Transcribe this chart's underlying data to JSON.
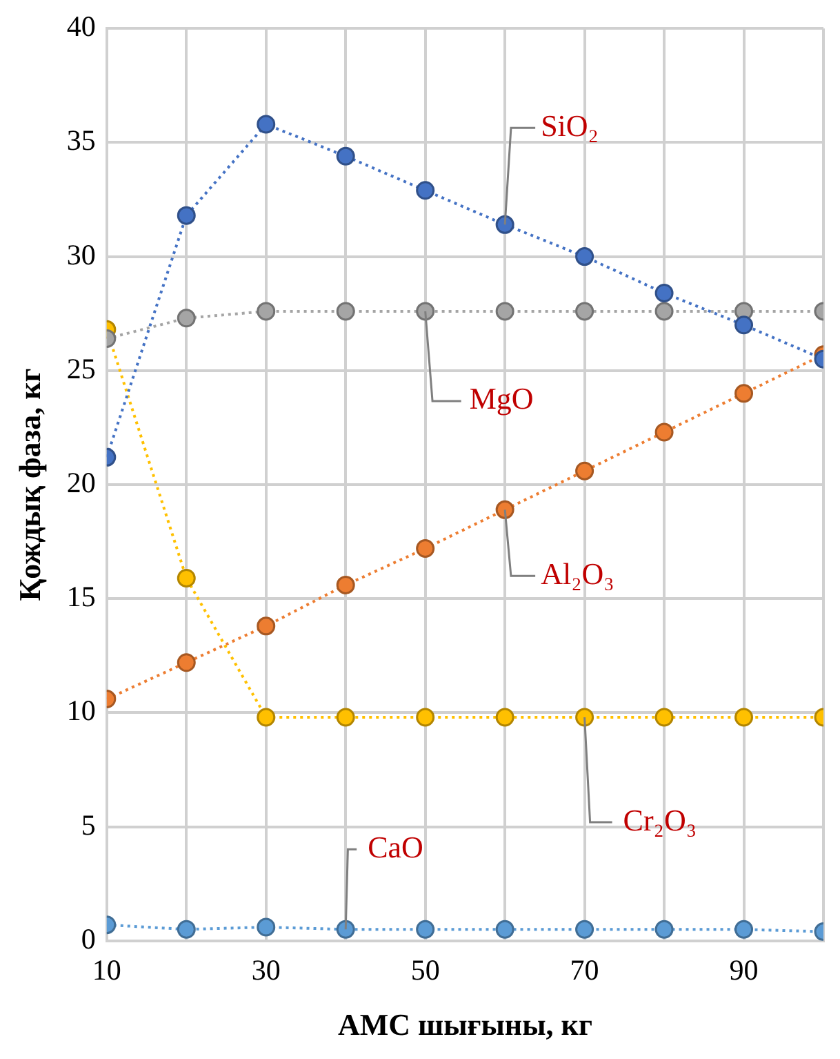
{
  "chart_data": {
    "type": "line",
    "xlabel": "АМС шығыны, кг",
    "ylabel": "Қождық фаза, кг",
    "x": [
      10,
      20,
      30,
      40,
      50,
      60,
      70,
      80,
      90,
      100
    ],
    "xlim": [
      10,
      100
    ],
    "xticks": [
      10,
      {
        "value": 20,
        "label": null
      },
      30,
      {
        "value": 40,
        "label": null
      },
      50,
      {
        "value": 60,
        "label": null
      },
      70,
      {
        "value": 80,
        "label": null
      },
      90,
      {
        "value": 100,
        "label": null
      }
    ],
    "ylim": [
      0,
      40
    ],
    "yticks": [
      0,
      5,
      10,
      15,
      20,
      25,
      30,
      35,
      40
    ],
    "grid": true,
    "marker": "circle",
    "line_style": "dotted",
    "series": [
      {
        "name": "SiO₂",
        "color": "#4472c4",
        "values": [
          21.2,
          31.8,
          35.8,
          34.4,
          32.9,
          31.4,
          30.0,
          28.4,
          27.0,
          25.5
        ]
      },
      {
        "name": "MgO",
        "color": "#a5a5a5",
        "values": [
          26.4,
          27.3,
          27.6,
          27.6,
          27.6,
          27.6,
          27.6,
          27.6,
          27.6,
          27.6
        ]
      },
      {
        "name": "Al₂O₃",
        "color": "#ed7d31",
        "values": [
          10.6,
          12.2,
          13.8,
          15.6,
          17.2,
          18.9,
          20.6,
          22.3,
          24.0,
          25.7
        ]
      },
      {
        "name": "Cr₂O₃",
        "color": "#ffc000",
        "values": [
          26.8,
          15.9,
          9.8,
          9.8,
          9.8,
          9.8,
          9.8,
          9.8,
          9.8,
          9.8
        ]
      },
      {
        "name": "CaO",
        "color": "#5b9bd5",
        "values": [
          0.7,
          0.5,
          0.6,
          0.5,
          0.5,
          0.5,
          0.5,
          0.5,
          0.5,
          0.4
        ]
      }
    ]
  }
}
